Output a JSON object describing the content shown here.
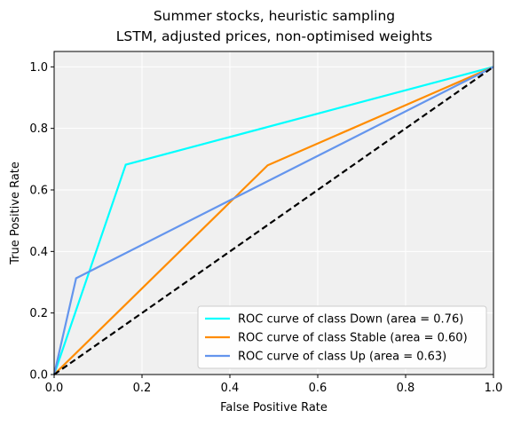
{
  "chart_data": {
    "type": "line",
    "title": [
      "Summer stocks, heuristic sampling",
      "LSTM, adjusted prices, non-optimised weights"
    ],
    "xlabel": "False Positive Rate",
    "ylabel": "True Positive Rate",
    "xlim": [
      0,
      1
    ],
    "ylim": [
      0,
      1.05
    ],
    "xticks": [
      "0.0",
      "0.2",
      "0.4",
      "0.6",
      "0.8",
      "1.0"
    ],
    "yticks": [
      "0.0",
      "0.2",
      "0.4",
      "0.6",
      "0.8",
      "1.0"
    ],
    "grid": true,
    "legend_position": "lower-right",
    "background_color": "#f0f0f0",
    "series": [
      {
        "name": "ROC curve of class Down (area = 0.76)",
        "color": "#00ffff",
        "x": [
          0.0,
          0.163,
          1.0
        ],
        "y": [
          0.0,
          0.682,
          1.0
        ]
      },
      {
        "name": "ROC curve of class Stable (area = 0.60)",
        "color": "#ff8c00",
        "x": [
          0.0,
          0.486,
          1.0
        ],
        "y": [
          0.0,
          0.68,
          1.0
        ]
      },
      {
        "name": "ROC curve of class Up (area = 0.63)",
        "color": "#6495ed",
        "x": [
          0.0,
          0.05,
          1.0
        ],
        "y": [
          0.0,
          0.313,
          1.0
        ]
      }
    ],
    "reference_line": {
      "style": "dashed",
      "color": "#000000",
      "x": [
        0,
        1
      ],
      "y": [
        0,
        1
      ]
    }
  }
}
